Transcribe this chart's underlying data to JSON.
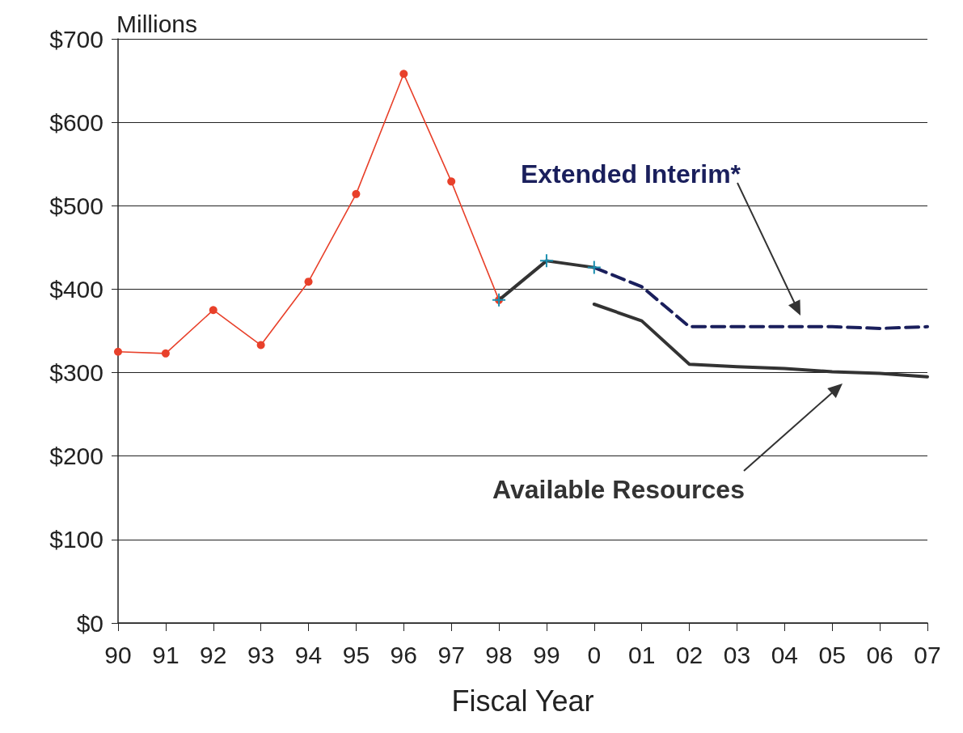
{
  "chart_data": {
    "type": "line",
    "xlabel": "Fiscal Year",
    "ylabel": "Millions",
    "categories": [
      "90",
      "91",
      "92",
      "93",
      "94",
      "95",
      "96",
      "97",
      "98",
      "99",
      "0",
      "01",
      "02",
      "03",
      "04",
      "05",
      "06",
      "07"
    ],
    "series": [
      {
        "color": "#e8402a",
        "marker": "circle",
        "line_style": "solid",
        "values": [
          325,
          323,
          375,
          333,
          409,
          514,
          658,
          529,
          387,
          null,
          null,
          null,
          null,
          null,
          null,
          null,
          null,
          null
        ]
      },
      {
        "color": "#333333",
        "marker": "cross",
        "line_style": "solid",
        "values": [
          null,
          null,
          null,
          null,
          null,
          null,
          null,
          null,
          387,
          434,
          426,
          null,
          null,
          null,
          null,
          null,
          null,
          null
        ]
      },
      {
        "name": "Extended Interim*",
        "color": "#1a1f5c",
        "marker": "none",
        "line_style": "dashed",
        "values": [
          null,
          null,
          null,
          null,
          null,
          null,
          null,
          null,
          null,
          null,
          426,
          403,
          355,
          355,
          355,
          355,
          353,
          355
        ]
      },
      {
        "name": "Available Resources",
        "color": "#333333",
        "marker": "none",
        "line_style": "solid",
        "values": [
          null,
          null,
          null,
          null,
          null,
          null,
          null,
          null,
          null,
          null,
          382,
          362,
          310,
          307,
          305,
          301,
          299,
          295
        ]
      }
    ],
    "ylim": [
      0,
      700
    ],
    "yticks": [
      {
        "value": 0,
        "label": "$0"
      },
      {
        "value": 100,
        "label": "$100"
      },
      {
        "value": 200,
        "label": "$200"
      },
      {
        "value": 300,
        "label": "$300"
      },
      {
        "value": 400,
        "label": "$400"
      },
      {
        "value": 500,
        "label": "$500"
      },
      {
        "value": 600,
        "label": "$600"
      },
      {
        "value": 700,
        "label": "$700"
      }
    ],
    "grid": "y",
    "legend": false
  }
}
